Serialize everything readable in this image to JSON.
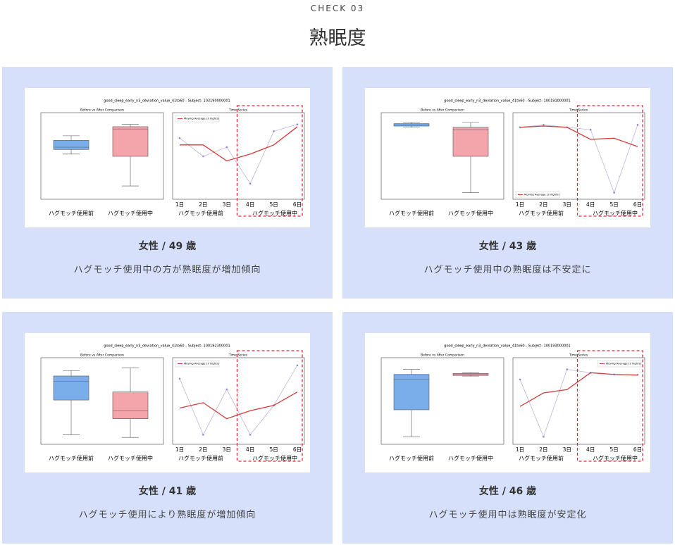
{
  "header": {
    "kicker": "CHECK 03",
    "title": "熟眠度"
  },
  "cards": [
    {
      "heading": "女性 / 49 歳",
      "caption": "ハグモッチ使用中の方が熟眠度が増加傾向",
      "chart": {
        "title": "good_sleep_early_n3_deviation_value_41to60 - Subject: 103190000001",
        "box_title": "Before vs After Comparison",
        "series_title": "Time Series",
        "groups": [
          "ハグモッチ使用前",
          "ハグモッチ使用中"
        ],
        "days": [
          "1日",
          "2日",
          "3日",
          "4日",
          "5日",
          "6日"
        ],
        "ylim": [
          40,
          74
        ],
        "legend": "upper left",
        "boxes": [
          {
            "min": 58,
            "q1": 60,
            "median": 61,
            "q3": 64,
            "max": 66,
            "color": "#7aaeea"
          },
          {
            "min": 44,
            "q1": 57,
            "median": 69,
            "q3": 70,
            "max": 71,
            "color": "#f4a4ab"
          }
        ],
        "raw": {
          "color": "#b9b6e2",
          "values": [
            65,
            57,
            61,
            45,
            68,
            71
          ]
        },
        "average": {
          "name": "Moving Average (3 nights)",
          "color": "#d23c3c",
          "values": [
            62,
            62,
            55,
            58,
            62,
            70
          ]
        }
      }
    },
    {
      "heading": "女性 / 43 歳",
      "caption": "ハグモッチ使用中の熟眠度は不安定に",
      "chart": {
        "title": "good_sleep_early_n3_deviation_value_41to60 - Subject: 100191000001",
        "box_title": "Before vs After Comparison",
        "series_title": "Time Series",
        "groups": [
          "ハグモッチ使用前",
          "ハグモッチ使用中"
        ],
        "days": [
          "1日",
          "2日",
          "3日",
          "4日",
          "5日",
          "6日"
        ],
        "ylim": [
          29,
          61
        ],
        "legend": "lower left",
        "boxes": [
          {
            "min": 57,
            "q1": 57.5,
            "median": 58,
            "q3": 58.5,
            "max": 59,
            "color": "#7aaeea"
          },
          {
            "min": 30,
            "q1": 45,
            "median": 56,
            "q3": 57,
            "max": 59,
            "color": "#f4a4ab"
          }
        ],
        "raw": {
          "color": "#b9b6e2",
          "values": [
            57,
            58,
            57,
            56,
            30,
            58
          ]
        },
        "average": {
          "name": "Moving Average (3 nights)",
          "color": "#d23c3c",
          "values": [
            57,
            57.5,
            57,
            52,
            52.5,
            49
          ]
        }
      }
    },
    {
      "heading": "女性 / 41 歳",
      "caption": "ハグモッチ使用により熟眠度が増加傾向",
      "chart": {
        "title": "good_sleep_early_n3_deviation_value_41to60 - Subject: 100192300001",
        "box_title": "Before vs After Comparison",
        "series_title": "Time Series",
        "groups": [
          "ハグモッチ使用前",
          "ハグモッチ使用中"
        ],
        "days": [
          "1日",
          "2日",
          "3日",
          "4日",
          "5日",
          "6日"
        ],
        "ylim": [
          38,
          67
        ],
        "legend": "upper left",
        "boxes": [
          {
            "min": 40,
            "q1": 53,
            "median": 60,
            "q3": 62,
            "max": 64,
            "color": "#7aaeea"
          },
          {
            "min": 39,
            "q1": 46,
            "median": 49,
            "q3": 56,
            "max": 65,
            "color": "#f4a4ab"
          }
        ],
        "raw": {
          "color": "#b9b6e2",
          "values": [
            61,
            40,
            57,
            40,
            51,
            66
          ]
        },
        "average": {
          "name": "Moving Average (3 nights)",
          "color": "#d23c3c",
          "values": [
            50,
            52,
            46,
            49,
            51,
            56
          ]
        }
      }
    },
    {
      "heading": "女性 / 46 歳",
      "caption": "ハグモッチ使用中は熟眠度が安定化",
      "chart": {
        "title": "good_sleep_early_n3_deviation_value_41to60 - Subject: 100193000001",
        "box_title": "Before vs After Comparison",
        "series_title": "Time Series",
        "groups": [
          "ハグモッチ使用前",
          "ハグモッチ使用中"
        ],
        "days": [
          "1日",
          "2日",
          "3日",
          "4日",
          "5日",
          "6日"
        ],
        "ylim": [
          29,
          52
        ],
        "legend": "upper right",
        "boxes": [
          {
            "min": 30,
            "q1": 38,
            "median": 47,
            "q3": 48.5,
            "max": 50,
            "color": "#7aaeea"
          },
          {
            "min": 48,
            "q1": 48.2,
            "median": 48.5,
            "q3": 48.8,
            "max": 49,
            "color": "#f4a4ab"
          }
        ],
        "raw": {
          "color": "#b9b6e2",
          "values": [
            47,
            30,
            50,
            49,
            48.5,
            48.4
          ]
        },
        "average": {
          "name": "Moving Average (3 nights)",
          "color": "#d23c3c",
          "values": [
            39,
            43,
            44,
            49,
            48.5,
            48.3
          ]
        }
      }
    }
  ]
}
